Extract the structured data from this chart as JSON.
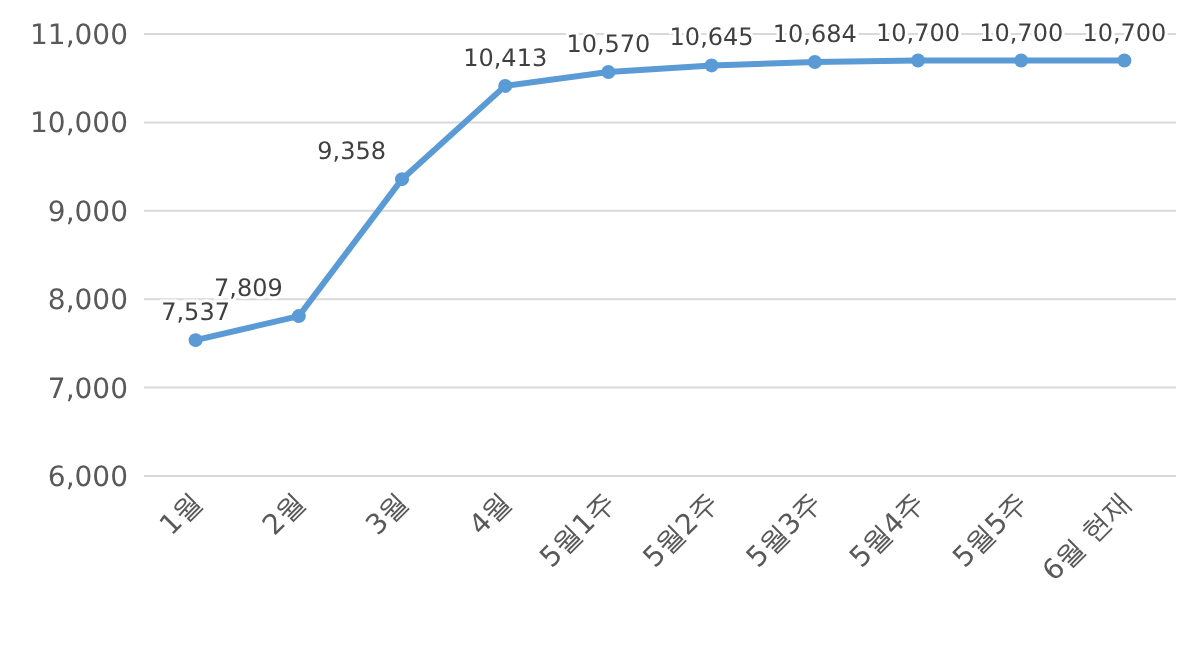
{
  "chart_data": {
    "type": "line",
    "categories": [
      "1월",
      "2월",
      "3월",
      "4월",
      "5월1주",
      "5월2주",
      "5월3주",
      "5월4주",
      "5월5주",
      "6월 현재"
    ],
    "series": [
      {
        "color": "#5b9bd5",
        "values": [
          7537,
          7809,
          9358,
          10413,
          10570,
          10645,
          10684,
          10700,
          10700,
          10700
        ],
        "value_labels": [
          "7,537",
          "7,809",
          "9,358",
          "10,413",
          "10,570",
          "10,645",
          "10,684",
          "10,700",
          "10,700",
          "10,700"
        ]
      }
    ],
    "ylim": [
      6000,
      11000
    ],
    "yticks": [
      {
        "value": 6000,
        "label": "6,000"
      },
      {
        "value": 7000,
        "label": "7,000"
      },
      {
        "value": 8000,
        "label": "8,000"
      },
      {
        "value": 9000,
        "label": "9,000"
      },
      {
        "value": 10000,
        "label": "10,000"
      },
      {
        "value": 11000,
        "label": "11,000"
      }
    ],
    "grid": "y",
    "marker": "circle",
    "line_style": "solid"
  }
}
